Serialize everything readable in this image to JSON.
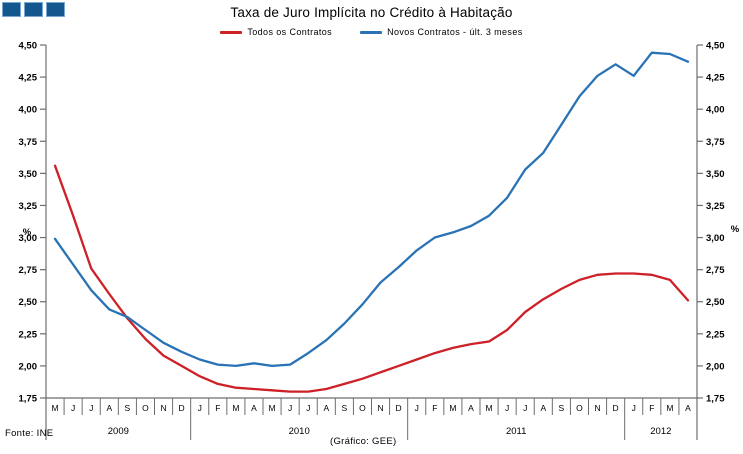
{
  "header": {
    "title": "Taxa de Juro Implícita no Crédito à Habitação"
  },
  "legend": [
    {
      "label": "Todos os Contratos",
      "color": "#cd2027"
    },
    {
      "label": "Novos Contratos - últ. 3 meses",
      "color": "#2973b5"
    }
  ],
  "footer": {
    "source": "Fonte: INE",
    "credit": "(Gráfico: GEE)"
  },
  "logo": {
    "squares": 3,
    "fill": "#14578e",
    "border": "#79a8d2"
  },
  "chart_data": {
    "type": "line",
    "title": "Taxa de Juro Implícita no Crédito à Habitação",
    "ylabel": "%",
    "ylim": [
      1.75,
      4.5
    ],
    "ytick_step": 0.25,
    "ytick_labels": [
      "4,50",
      "4,25",
      "4,00",
      "3,75",
      "3,50",
      "3,25",
      "3,00",
      "2,75",
      "2,50",
      "2,25",
      "2,00",
      "1,75"
    ],
    "grid": false,
    "legend_position": "top",
    "x_months": [
      "M",
      "J",
      "J",
      "A",
      "S",
      "O",
      "N",
      "D",
      "J",
      "F",
      "M",
      "A",
      "M",
      "J",
      "J",
      "A",
      "S",
      "O",
      "N",
      "D",
      "J",
      "F",
      "M",
      "A",
      "M",
      "J",
      "J",
      "A",
      "S",
      "O",
      "N",
      "D",
      "J",
      "F",
      "M",
      "A"
    ],
    "x_years": [
      {
        "label": "2009",
        "span": 8
      },
      {
        "label": "2010",
        "span": 12
      },
      {
        "label": "2011",
        "span": 12
      },
      {
        "label": "2012",
        "span": 4
      }
    ],
    "series": [
      {
        "name": "Todos os Contratos",
        "color": "#cd2027",
        "values": [
          3.56,
          3.17,
          2.76,
          2.56,
          2.37,
          2.21,
          2.08,
          2.0,
          1.92,
          1.86,
          1.83,
          1.82,
          1.81,
          1.8,
          1.8,
          1.82,
          1.86,
          1.9,
          1.95,
          2.0,
          2.05,
          2.1,
          2.14,
          2.17,
          2.19,
          2.28,
          2.42,
          2.52,
          2.6,
          2.67,
          2.71,
          2.72,
          2.72,
          2.71,
          2.67,
          2.51
        ]
      },
      {
        "name": "Novos Contratos - últ. 3 meses",
        "color": "#2973b5",
        "values": [
          2.99,
          2.79,
          2.59,
          2.44,
          2.38,
          2.28,
          2.18,
          2.11,
          2.05,
          2.01,
          2.0,
          2.02,
          2.0,
          2.01,
          2.1,
          2.2,
          2.33,
          2.48,
          2.65,
          2.77,
          2.9,
          3.0,
          3.04,
          3.09,
          3.17,
          3.31,
          3.53,
          3.66,
          3.88,
          4.1,
          4.26,
          4.35,
          4.26,
          4.44,
          4.43,
          4.37
        ]
      }
    ]
  }
}
